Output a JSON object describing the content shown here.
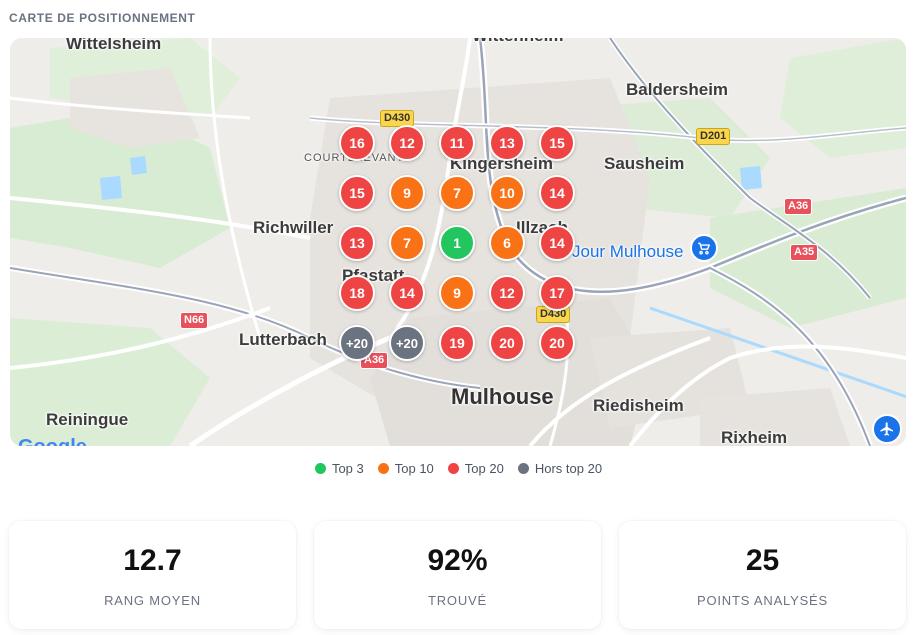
{
  "section_title": "CARTE DE POSITIONNEMENT",
  "colors": {
    "top3": "#22c55e",
    "top10": "#f97316",
    "top20": "#ef4444",
    "hors_top20": "#6b7280"
  },
  "map": {
    "places": {
      "wittelsheim": "Wittelsheim",
      "wittenheim": "Wittenheim",
      "baldersheim": "Baldersheim",
      "sausheim": "Sausheim",
      "kingersheim": "Kingersheim",
      "courtelevant": "COURTELEVANT",
      "richwiller": "Richwiller",
      "illzach": "Illzach",
      "pfastatt": "Pfastatt",
      "lutterbach": "Lutterbach",
      "reiningue": "Reiningue",
      "mulhouse": "Mulhouse",
      "riedisheim": "Riedisheim",
      "rixheim": "Rixheim",
      "poi": "Jour Mulhouse"
    },
    "roads": {
      "d430_top": "D430",
      "d201": "D201",
      "a36_right": "A36",
      "a35": "A35",
      "n66": "N66",
      "a36_left": "A36",
      "d430_mid": "D430"
    },
    "google_logo": "Google",
    "icons": {
      "poi": "shopping-cart-icon",
      "airport": "airplane-icon"
    }
  },
  "grid": [
    [
      "16",
      "12",
      "11",
      "13",
      "15"
    ],
    [
      "15",
      "9",
      "7",
      "10",
      "14"
    ],
    [
      "13",
      "7",
      "1",
      "6",
      "14"
    ],
    [
      "18",
      "14",
      "9",
      "12",
      "17"
    ],
    [
      "+20",
      "+20",
      "19",
      "20",
      "20"
    ]
  ],
  "legend": [
    {
      "label": "Top 3",
      "color": "#22c55e"
    },
    {
      "label": "Top 10",
      "color": "#f97316"
    },
    {
      "label": "Top 20",
      "color": "#ef4444"
    },
    {
      "label": "Hors top 20",
      "color": "#6b7280"
    }
  ],
  "stats": {
    "rank": {
      "value": "12.7",
      "label": "RANG MOYEN"
    },
    "found": {
      "value": "92%",
      "label": "TROUVÉ"
    },
    "points": {
      "value": "25",
      "label": "POINTS ANALYSÉS"
    }
  }
}
